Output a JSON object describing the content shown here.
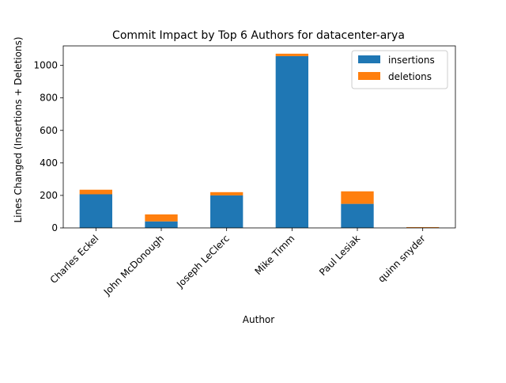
{
  "chart_data": {
    "type": "bar",
    "stacked": true,
    "title": "Commit Impact by Top 6 Authors for datacenter-arya",
    "xlabel": "Author",
    "ylabel": "Lines Changed (Insertions + Deletions)",
    "categories": [
      "Charles Eckel",
      "John McDonough",
      "Joseph LeClerc",
      "Mike Timm",
      "Paul Lesiak",
      "quinn snyder"
    ],
    "series": [
      {
        "name": "insertions",
        "color": "#1f77b4",
        "values": [
          207,
          40,
          200,
          1057,
          148,
          2
        ]
      },
      {
        "name": "deletions",
        "color": "#ff7f0e",
        "values": [
          28,
          43,
          20,
          15,
          77,
          3
        ]
      }
    ],
    "ylim": [
      0,
      1120
    ],
    "yticks": [
      0,
      200,
      400,
      600,
      800,
      1000
    ],
    "grid": false,
    "legend_position": "top-right"
  }
}
